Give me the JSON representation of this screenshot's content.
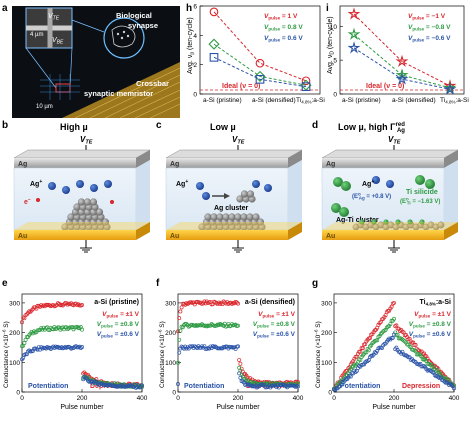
{
  "panel_labels": {
    "a": "a",
    "b": "b",
    "c": "c",
    "d": "d",
    "e": "e",
    "f": "f",
    "g": "g",
    "h": "h",
    "i": "i"
  },
  "panel_a": {
    "vte": "V",
    "vte_sub": "TE",
    "vbe": "V",
    "vbe_sub": "BE",
    "scale_top": "4 µm",
    "scale_bottom": "10 µm",
    "bio_label_1": "Biological",
    "bio_label_2": "synapse",
    "crossbar_1": "Crossbar",
    "crossbar_2": "synaptic memristor"
  },
  "panel_b": {
    "title": "High µ",
    "ag": "Ag",
    "au": "Au",
    "vte": "V",
    "vte_sub": "TE",
    "ion": "Ag",
    "ion_sup": "+",
    "electron": "e",
    "electron_sup": "−"
  },
  "panel_c": {
    "title": "Low µ",
    "ag": "Ag",
    "au": "Au",
    "vte": "V",
    "vte_sub": "TE",
    "ion": "Ag",
    "ion_sup": "+",
    "cluster": "Ag cluster"
  },
  "panel_d": {
    "title_pre": "Low µ, high Γ",
    "title_sup": "red",
    "title_sub": "Ag",
    "ag": "Ag",
    "au": "Au",
    "vte": "V",
    "vte_sub": "TE",
    "ion": "Ag",
    "ion_sup": "+",
    "ag_e": "(E",
    "ag_e_sup": "o",
    "ag_e_sub": "Ag",
    "ag_e_val": " = +0.8 V)",
    "ti_silicide": "Ti silicide",
    "ti_e": "(E",
    "ti_e_sup": "o",
    "ti_e_sub": "Ti",
    "ti_e_val": " = −1.63 V)",
    "cluster": "Ag-Ti cluster"
  },
  "panel_h": {
    "ylabel_pre": "Avg. ν",
    "ylabel_sub": "p",
    "ylabel_post": " (ten-cycle)",
    "categories": [
      "a-Si (pristine)",
      "a-Si (densified)",
      "Ti"
    ],
    "cat3_sub": "4.8%",
    "cat3_post": ":a-Si",
    "ideal": "Ideal (ν = 0)",
    "yticks": [
      "0",
      "2",
      "4",
      "6"
    ],
    "legend": [
      {
        "pre": "V",
        "sub": "pulse",
        "post": " = 1 V",
        "color": "#d9262c"
      },
      {
        "pre": "V",
        "sub": "pulse",
        "post": " = 0.8 V",
        "color": "#2e9a43"
      },
      {
        "pre": "V",
        "sub": "pulse",
        "post": " = 0.6 V",
        "color": "#2a53a8"
      }
    ]
  },
  "panel_i": {
    "ylabel_pre": "Avg. ν",
    "ylabel_sub": "D",
    "ylabel_post": " (ten-cycle)",
    "categories": [
      "a-Si (pristine)",
      "a-Si (densified)",
      "Ti"
    ],
    "cat3_sub": "4.8%",
    "cat3_post": ":a-Si",
    "ideal": "Ideal (ν = 0)",
    "yticks": [
      "0",
      "5",
      "10"
    ],
    "legend": [
      {
        "pre": "V",
        "sub": "pulse",
        "post": " = −1 V",
        "color": "#d9262c"
      },
      {
        "pre": "V",
        "sub": "pulse",
        "post": " = −0.8 V",
        "color": "#2e9a43"
      },
      {
        "pre": "V",
        "sub": "pulse",
        "post": " = −0.6 V",
        "color": "#2a53a8"
      }
    ]
  },
  "conductance_common": {
    "ylabel_pre": "Conductance (×10",
    "ylabel_sup": "−6",
    "ylabel_post": " S)",
    "xlabel": "Pulse number",
    "potentiation": "Potentiation",
    "depression": "Depression",
    "xticks": [
      "0",
      "200",
      "400"
    ],
    "yticks": [
      "0",
      "100",
      "200",
      "300"
    ]
  },
  "panel_e": {
    "material": "a-Si (pristine)",
    "legend": [
      {
        "pre": "V",
        "sub": "pulse",
        "post": " = ±1 V"
      },
      {
        "pre": "V",
        "sub": "pulse",
        "post": " = ±0.8 V"
      },
      {
        "pre": "V",
        "sub": "pulse",
        "post": " = ±0.6 V"
      }
    ]
  },
  "panel_f": {
    "material": "a-Si (densified)",
    "legend": [
      {
        "pre": "V",
        "sub": "pulse",
        "post": " = ±1 V"
      },
      {
        "pre": "V",
        "sub": "pulse",
        "post": " = ±0.8 V"
      },
      {
        "pre": "V",
        "sub": "pulse",
        "post": " = ±0.6 V"
      }
    ]
  },
  "panel_g": {
    "material_pre": "Ti",
    "material_sub": "4.8%",
    "material_post": ":a-Si",
    "legend": [
      {
        "pre": "V",
        "sub": "pulse",
        "post": " = ±1 V"
      },
      {
        "pre": "V",
        "sub": "pulse",
        "post": " = ±0.8 V"
      },
      {
        "pre": "V",
        "sub": "pulse",
        "post": " = ±0.6 V"
      }
    ]
  },
  "chart_data": [
    {
      "type": "line",
      "panel": "h",
      "categories": [
        "a-Si (pristine)",
        "a-Si (densified)",
        "Ti4.8%:a-Si"
      ],
      "ylim": [
        0,
        6
      ],
      "series": [
        {
          "name": "Vpulse = 1 V",
          "marker": "circle",
          "color": "#d9262c",
          "values": [
            5.6,
            2.1,
            0.9
          ]
        },
        {
          "name": "Vpulse = 0.8 V",
          "marker": "diamond",
          "color": "#2e9a43",
          "values": [
            3.4,
            1.2,
            0.6
          ]
        },
        {
          "name": "Vpulse = 0.6 V",
          "marker": "square",
          "color": "#2a53a8",
          "values": [
            2.5,
            1.0,
            0.5
          ]
        }
      ]
    },
    {
      "type": "line",
      "panel": "i",
      "categories": [
        "a-Si (pristine)",
        "a-Si (densified)",
        "Ti4.8%:a-Si"
      ],
      "ylim": [
        0,
        13
      ],
      "series": [
        {
          "name": "Vpulse = −1 V",
          "marker": "star",
          "color": "#d9262c",
          "values": [
            11.8,
            4.8,
            1.2
          ]
        },
        {
          "name": "Vpulse = −0.8 V",
          "marker": "star",
          "color": "#2e9a43",
          "values": [
            8.8,
            2.8,
            0.9
          ]
        },
        {
          "name": "Vpulse = −0.6 V",
          "marker": "star",
          "color": "#2a53a8",
          "values": [
            6.8,
            2.2,
            0.7
          ]
        }
      ]
    },
    {
      "type": "scatter",
      "panel": "e",
      "xlim": [
        0,
        400
      ],
      "ylim": [
        0,
        330
      ],
      "series": [
        {
          "name": "Vpulse = ±1 V",
          "color": "#d9262c",
          "pot": {
            "start": 240,
            "end": 295,
            "k": 0.15
          },
          "dep": {
            "start": 70,
            "end": 22,
            "k": 0.25
          }
        },
        {
          "name": "Vpulse = ±0.8 V",
          "color": "#2e9a43",
          "pot": {
            "start": 150,
            "end": 215,
            "k": 0.12
          },
          "dep": {
            "start": 55,
            "end": 20,
            "k": 0.25
          }
        },
        {
          "name": "Vpulse = ±0.6 V",
          "color": "#2a53a8",
          "pot": {
            "start": 110,
            "end": 150,
            "k": 0.12
          },
          "dep": {
            "start": 50,
            "end": 18,
            "k": 0.25
          }
        }
      ]
    },
    {
      "type": "scatter",
      "panel": "f",
      "xlim": [
        0,
        400
      ],
      "ylim": [
        0,
        330
      ],
      "series": [
        {
          "name": "Vpulse = ±1 V",
          "color": "#d9262c",
          "pot": {
            "start": 200,
            "end": 300,
            "k": 0.03
          },
          "dep": {
            "start": 120,
            "end": 30,
            "k": 0.1
          }
        },
        {
          "name": "Vpulse = ±0.8 V",
          "color": "#2e9a43",
          "pot": {
            "start": 100,
            "end": 225,
            "k": 0.02
          },
          "dep": {
            "start": 95,
            "end": 25,
            "k": 0.08
          }
        },
        {
          "name": "Vpulse = ±0.6 V",
          "color": "#2a53a8",
          "pot": {
            "start": 30,
            "end": 150,
            "k": 0.01
          },
          "dep": {
            "start": 85,
            "end": 20,
            "k": 0.05
          }
        }
      ]
    },
    {
      "type": "scatter",
      "panel": "g",
      "xlim": [
        0,
        400
      ],
      "ylim": [
        0,
        330
      ],
      "series": [
        {
          "name": "Vpulse = ±1 V",
          "color": "#d9262c",
          "pot": {
            "start": 10,
            "end": 300,
            "k": 0.0
          },
          "dep": {
            "start": 230,
            "end": 20,
            "k": 0.0
          }
        },
        {
          "name": "Vpulse = ±0.8 V",
          "color": "#2e9a43",
          "pot": {
            "start": 8,
            "end": 245,
            "k": 0.0
          },
          "dep": {
            "start": 200,
            "end": 18,
            "k": 0.0
          }
        },
        {
          "name": "Vpulse = ±0.6 V",
          "color": "#2a53a8",
          "pot": {
            "start": 5,
            "end": 190,
            "k": 0.0
          },
          "dep": {
            "start": 150,
            "end": 15,
            "k": 0.0
          }
        }
      ]
    }
  ]
}
